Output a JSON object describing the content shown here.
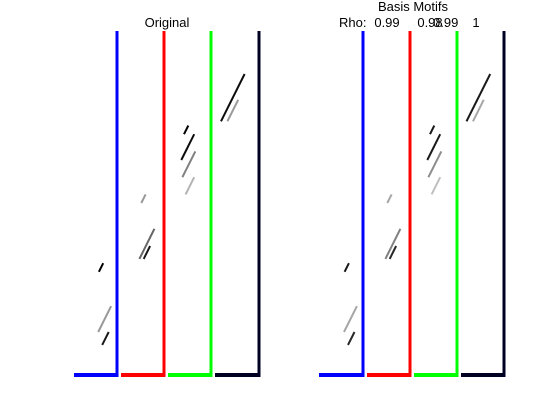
{
  "chart_data": [
    {
      "type": "heatmap",
      "title": "Original",
      "xlabel": "",
      "ylabel": "",
      "grid": false,
      "rho_labels": [],
      "neurons": 4,
      "time_bins": 40,
      "row_range": [
        0,
        40
      ],
      "separators": [
        {
          "name": "blue",
          "color": "#0000ff"
        },
        {
          "name": "red",
          "color": "#ff0000"
        },
        {
          "name": "green",
          "color": "#00ff00"
        },
        {
          "name": "navy",
          "color": "#000022"
        }
      ],
      "strokes": [
        {
          "neuron": 1,
          "row_start": 27,
          "row_end": 28,
          "intensity": 1.0
        },
        {
          "neuron": 1,
          "row_start": 35,
          "row_end": 36.5,
          "intensity": 0.9
        },
        {
          "neuron": 1,
          "row_start": 32,
          "row_end": 35,
          "intensity": 0.4
        },
        {
          "neuron": 2,
          "row_start": 19,
          "row_end": 20,
          "intensity": 0.4
        },
        {
          "neuron": 2,
          "row_start": 25,
          "row_end": 26.5,
          "intensity": 0.9
        },
        {
          "neuron": 2,
          "row_start": 23,
          "row_end": 26.5,
          "intensity": 0.6
        },
        {
          "neuron": 3,
          "row_start": 11,
          "row_end": 12,
          "intensity": 1.0
        },
        {
          "neuron": 3,
          "row_start": 12,
          "row_end": 15,
          "intensity": 0.95
        },
        {
          "neuron": 3,
          "row_start": 14,
          "row_end": 17,
          "intensity": 0.5
        },
        {
          "neuron": 3,
          "row_start": 17,
          "row_end": 19,
          "intensity": 0.3
        },
        {
          "neuron": 4,
          "row_start": 5,
          "row_end": 10.5,
          "intensity": 0.95
        },
        {
          "neuron": 4,
          "row_start": 8,
          "row_end": 10.5,
          "intensity": 0.4
        }
      ]
    },
    {
      "type": "heatmap",
      "title": "Basis Motifs",
      "xlabel": "",
      "ylabel": "",
      "grid": false,
      "rho_prefix": "Rho:",
      "rho_labels": [
        "0.99",
        "0.98",
        "0.99",
        "1"
      ],
      "neurons": 4,
      "time_bins": 40,
      "row_range": [
        0,
        40
      ],
      "separators": [
        {
          "name": "blue",
          "color": "#0000ff"
        },
        {
          "name": "red",
          "color": "#ff0000"
        },
        {
          "name": "green",
          "color": "#00ff00"
        },
        {
          "name": "navy",
          "color": "#000022"
        }
      ],
      "strokes": [
        {
          "neuron": 1,
          "row_start": 27,
          "row_end": 28,
          "intensity": 0.9
        },
        {
          "neuron": 1,
          "row_start": 35,
          "row_end": 36.5,
          "intensity": 0.85
        },
        {
          "neuron": 1,
          "row_start": 32,
          "row_end": 35,
          "intensity": 0.35
        },
        {
          "neuron": 2,
          "row_start": 19,
          "row_end": 20,
          "intensity": 0.35
        },
        {
          "neuron": 2,
          "row_start": 25,
          "row_end": 26.5,
          "intensity": 0.85
        },
        {
          "neuron": 2,
          "row_start": 23,
          "row_end": 26.5,
          "intensity": 0.5
        },
        {
          "neuron": 3,
          "row_start": 11,
          "row_end": 12,
          "intensity": 0.9
        },
        {
          "neuron": 3,
          "row_start": 12,
          "row_end": 15,
          "intensity": 0.9
        },
        {
          "neuron": 3,
          "row_start": 14,
          "row_end": 17,
          "intensity": 0.45
        },
        {
          "neuron": 3,
          "row_start": 17,
          "row_end": 19,
          "intensity": 0.25
        },
        {
          "neuron": 4,
          "row_start": 5,
          "row_end": 10.5,
          "intensity": 0.9
        },
        {
          "neuron": 4,
          "row_start": 8,
          "row_end": 10.5,
          "intensity": 0.35
        }
      ]
    }
  ]
}
